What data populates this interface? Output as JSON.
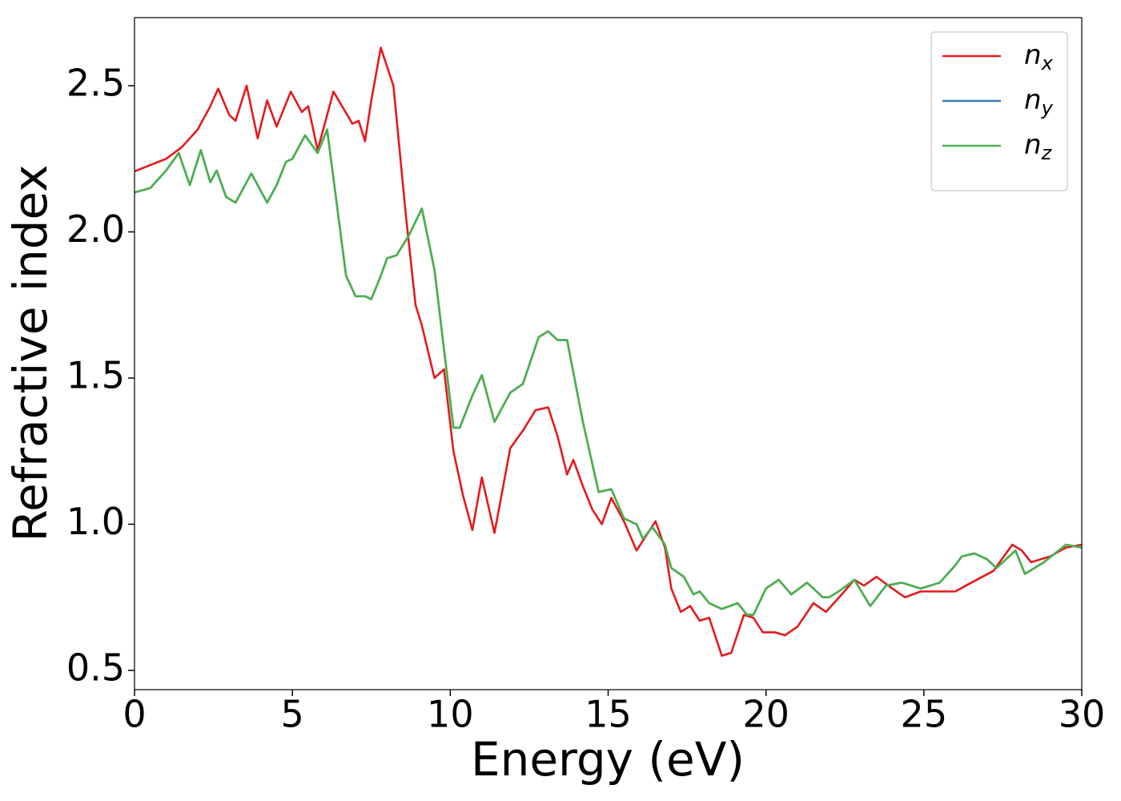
{
  "chart_data": {
    "type": "line",
    "x_label": "Energy (eV)",
    "y_label": "Refractive index",
    "xlim": [
      0,
      30
    ],
    "ylim": [
      0.434,
      2.733
    ],
    "xticks": [
      0,
      5,
      10,
      15,
      20,
      25,
      30
    ],
    "yticks": [
      0.5,
      {
        "value": 1,
        "label": "1.0"
      },
      1.5,
      {
        "value": 2,
        "label": "2.0"
      },
      2.5
    ],
    "grid": false,
    "legend": "upper right",
    "series": [
      {
        "name": "n_x",
        "color": "#e41a1c",
        "x": [
          0,
          1,
          1.5,
          2,
          2.4,
          2.65,
          3,
          3.2,
          3.55,
          3.9,
          4.2,
          4.5,
          4.95,
          5.3,
          5.5,
          5.8,
          6,
          6.3,
          6.9,
          7.1,
          7.3,
          7.5,
          7.8,
          8.2,
          8.6,
          8.9,
          9.1,
          9.5,
          9.8,
          10.1,
          10.4,
          10.7,
          11,
          11.4,
          11.9,
          12.3,
          12.7,
          13.1,
          13.4,
          13.7,
          13.9,
          14.2,
          14.5,
          14.8,
          15.1,
          15.5,
          15.9,
          16.2,
          16.5,
          16.8,
          17,
          17.3,
          17.6,
          17.9,
          18.2,
          18.6,
          18.9,
          19.3,
          19.6,
          19.9,
          20.3,
          20.6,
          21,
          21.5,
          21.9,
          22.4,
          22.8,
          23.1,
          23.5,
          24,
          24.4,
          24.9,
          25.5,
          26,
          26.5,
          27.2,
          27.8,
          28.1,
          28.4,
          29,
          29.5,
          30
        ],
        "values": [
          2.207,
          2.25,
          2.29,
          2.35,
          2.43,
          2.49,
          2.4,
          2.38,
          2.5,
          2.32,
          2.45,
          2.36,
          2.48,
          2.41,
          2.43,
          2.28,
          2.36,
          2.48,
          2.37,
          2.38,
          2.31,
          2.45,
          2.63,
          2.5,
          2.05,
          1.75,
          1.68,
          1.5,
          1.53,
          1.25,
          1.1,
          0.98,
          1.16,
          0.97,
          1.26,
          1.32,
          1.39,
          1.4,
          1.3,
          1.17,
          1.22,
          1.13,
          1.05,
          1,
          1.09,
          1.01,
          0.91,
          0.96,
          1.01,
          0.92,
          0.78,
          0.7,
          0.72,
          0.67,
          0.68,
          0.55,
          0.56,
          0.69,
          0.68,
          0.63,
          0.63,
          0.62,
          0.65,
          0.73,
          0.7,
          0.76,
          0.81,
          0.79,
          0.82,
          0.78,
          0.75,
          0.77,
          0.77,
          0.77,
          0.8,
          0.84,
          0.93,
          0.91,
          0.87,
          0.89,
          0.92,
          0.93
        ]
      },
      {
        "name": "n_y",
        "color": "#377eb8",
        "x": [
          0,
          0.5,
          1,
          1.4,
          1.75,
          2.1,
          2.4,
          2.6,
          2.9,
          3.2,
          3.7,
          4.2,
          4.5,
          4.8,
          5,
          5.4,
          5.8,
          6.1,
          6.4,
          6.7,
          7,
          7.3,
          7.5,
          7.8,
          8,
          8.3,
          8.7,
          9.1,
          9.5,
          9.8,
          10.1,
          10.3,
          10.7,
          11,
          11.4,
          11.9,
          12.3,
          12.8,
          13.1,
          13.4,
          13.7,
          14.2,
          14.7,
          15.1,
          15.5,
          15.9,
          16.1,
          16.4,
          16.8,
          17,
          17.4,
          17.7,
          17.9,
          18.2,
          18.6,
          19.1,
          19.4,
          19.6,
          20,
          20.4,
          20.8,
          21.3,
          21.8,
          22,
          22.3,
          22.8,
          23.3,
          23.8,
          24.3,
          24.9,
          25.5,
          26,
          26.2,
          26.6,
          27,
          27.3,
          27.9,
          28.2,
          28.8,
          29.5,
          30
        ],
        "values": [
          2.135,
          2.15,
          2.21,
          2.27,
          2.16,
          2.28,
          2.17,
          2.21,
          2.12,
          2.1,
          2.2,
          2.1,
          2.16,
          2.24,
          2.25,
          2.33,
          2.27,
          2.35,
          2.1,
          1.85,
          1.78,
          1.78,
          1.77,
          1.85,
          1.91,
          1.92,
          1.99,
          2.08,
          1.87,
          1.6,
          1.33,
          1.33,
          1.44,
          1.51,
          1.35,
          1.45,
          1.48,
          1.64,
          1.66,
          1.63,
          1.63,
          1.35,
          1.11,
          1.12,
          1.02,
          1,
          0.95,
          0.99,
          0.93,
          0.85,
          0.82,
          0.76,
          0.77,
          0.73,
          0.71,
          0.73,
          0.69,
          0.69,
          0.78,
          0.81,
          0.76,
          0.8,
          0.75,
          0.75,
          0.77,
          0.81,
          0.72,
          0.79,
          0.8,
          0.78,
          0.8,
          0.86,
          0.89,
          0.9,
          0.88,
          0.85,
          0.91,
          0.83,
          0.87,
          0.93,
          0.92
        ]
      },
      {
        "name": "n_z",
        "color": "#4daf4a",
        "x": [
          0,
          0.5,
          1,
          1.4,
          1.75,
          2.1,
          2.4,
          2.6,
          2.9,
          3.2,
          3.7,
          4.2,
          4.5,
          4.8,
          5,
          5.4,
          5.8,
          6.1,
          6.4,
          6.7,
          7,
          7.3,
          7.5,
          7.8,
          8,
          8.3,
          8.7,
          9.1,
          9.5,
          9.8,
          10.1,
          10.3,
          10.7,
          11,
          11.4,
          11.9,
          12.3,
          12.8,
          13.1,
          13.4,
          13.7,
          14.2,
          14.7,
          15.1,
          15.5,
          15.9,
          16.1,
          16.4,
          16.8,
          17,
          17.4,
          17.7,
          17.9,
          18.2,
          18.6,
          19.1,
          19.4,
          19.6,
          20,
          20.4,
          20.8,
          21.3,
          21.8,
          22,
          22.3,
          22.8,
          23.3,
          23.8,
          24.3,
          24.9,
          25.5,
          26,
          26.2,
          26.6,
          27,
          27.3,
          27.9,
          28.2,
          28.8,
          29.5,
          30
        ],
        "values": [
          2.135,
          2.15,
          2.21,
          2.27,
          2.16,
          2.28,
          2.17,
          2.21,
          2.12,
          2.1,
          2.2,
          2.1,
          2.16,
          2.24,
          2.25,
          2.33,
          2.27,
          2.35,
          2.1,
          1.85,
          1.78,
          1.78,
          1.77,
          1.85,
          1.91,
          1.92,
          1.99,
          2.08,
          1.87,
          1.6,
          1.33,
          1.33,
          1.44,
          1.51,
          1.35,
          1.45,
          1.48,
          1.64,
          1.66,
          1.63,
          1.63,
          1.35,
          1.11,
          1.12,
          1.02,
          1,
          0.95,
          0.99,
          0.93,
          0.85,
          0.82,
          0.76,
          0.77,
          0.73,
          0.71,
          0.73,
          0.69,
          0.69,
          0.78,
          0.81,
          0.76,
          0.8,
          0.75,
          0.75,
          0.77,
          0.81,
          0.72,
          0.79,
          0.8,
          0.78,
          0.8,
          0.86,
          0.89,
          0.9,
          0.88,
          0.85,
          0.91,
          0.83,
          0.87,
          0.93,
          0.92
        ]
      }
    ]
  }
}
